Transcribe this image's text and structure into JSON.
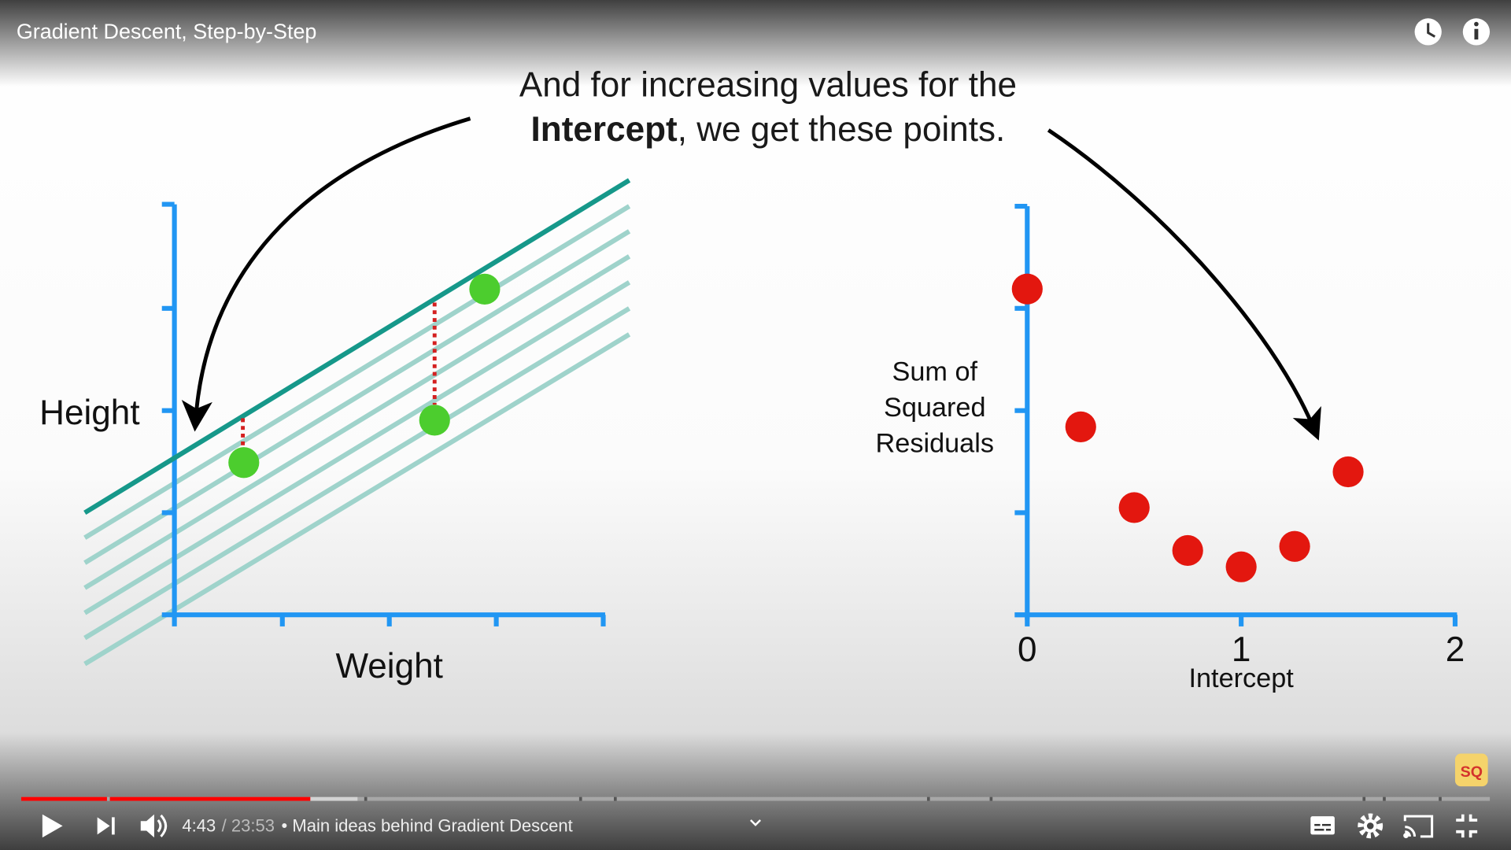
{
  "player": {
    "video_title": "Gradient Descent, Step-by-Step",
    "time_current": "4:43",
    "time_total": "/ 23:53",
    "chapter": "• Main ideas behind Gradient Descent"
  },
  "caption": {
    "line1": "And for increasing values for the",
    "bold": "Intercept",
    "rest": ", we get these points."
  },
  "left_plot": {
    "y_label": "Height",
    "x_label": "Weight"
  },
  "chart_data": {
    "type": "scatter",
    "xlabel": "Intercept",
    "ylabel": [
      "Sum of",
      "Squared",
      "Residuals"
    ],
    "x": [
      0,
      0.25,
      0.5,
      0.75,
      1.0,
      1.25,
      1.5
    ],
    "values": [
      3.19,
      1.84,
      1.05,
      0.63,
      0.47,
      0.67,
      1.4
    ],
    "color": "#e3170f",
    "xlim": [
      0,
      2
    ],
    "xticks": [
      0,
      1,
      2
    ],
    "ylim": [
      0,
      4
    ],
    "yticks": [
      0,
      1,
      2,
      3,
      4
    ]
  }
}
